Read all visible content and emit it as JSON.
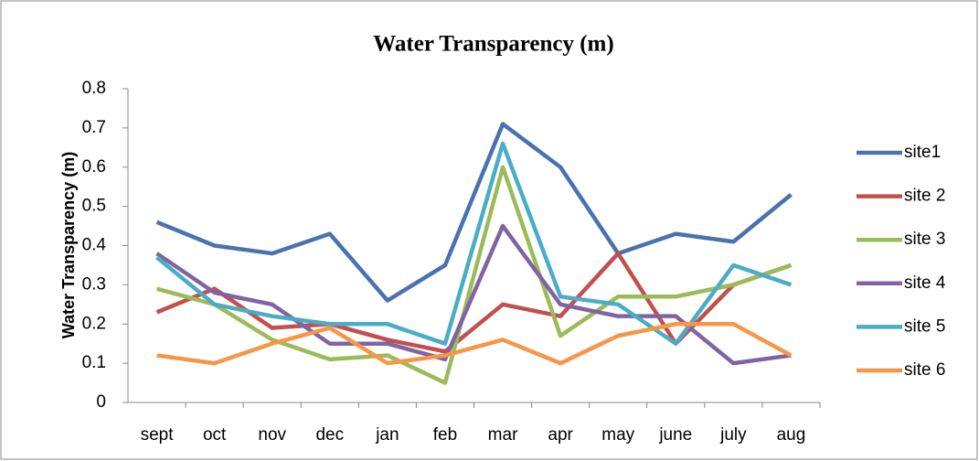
{
  "chart_data": {
    "type": "line",
    "title": "Water Transparency (m)",
    "ylabel": "Water Transparency (m)",
    "categories": [
      "sept",
      "oct",
      "nov",
      "dec",
      "jan",
      "feb",
      "mar",
      "apr",
      "may",
      "june",
      "july",
      "aug"
    ],
    "series": [
      {
        "name": "site1",
        "color": "#4a72b0",
        "values": [
          0.46,
          0.4,
          0.38,
          0.43,
          0.26,
          0.35,
          0.71,
          0.6,
          0.38,
          0.43,
          0.41,
          0.53
        ]
      },
      {
        "name": "site 2",
        "color": "#c0504d",
        "values": [
          0.23,
          0.29,
          0.19,
          0.2,
          0.16,
          0.13,
          0.25,
          0.22,
          0.38,
          0.15,
          0.3,
          0.35
        ]
      },
      {
        "name": "site 3",
        "color": "#9bbb59",
        "values": [
          0.29,
          0.25,
          0.16,
          0.11,
          0.12,
          0.05,
          0.6,
          0.17,
          0.27,
          0.27,
          0.3,
          0.35
        ]
      },
      {
        "name": "site 4",
        "color": "#8064a2",
        "values": [
          0.38,
          0.28,
          0.25,
          0.15,
          0.15,
          0.11,
          0.45,
          0.25,
          0.22,
          0.22,
          0.1,
          0.12
        ]
      },
      {
        "name": "site 5",
        "color": "#4bacc6",
        "values": [
          0.37,
          0.25,
          0.22,
          0.2,
          0.2,
          0.15,
          0.66,
          0.27,
          0.25,
          0.15,
          0.35,
          0.3
        ]
      },
      {
        "name": "site 6",
        "color": "#f79646",
        "values": [
          0.12,
          0.1,
          0.15,
          0.19,
          0.1,
          0.12,
          0.16,
          0.1,
          0.17,
          0.2,
          0.2,
          0.12
        ]
      }
    ],
    "ylim": [
      0,
      0.8
    ],
    "yticks": [
      0,
      0.1,
      0.2,
      0.3,
      0.4,
      0.5,
      0.6,
      0.7,
      0.8
    ],
    "grid": false,
    "legend": "right"
  }
}
